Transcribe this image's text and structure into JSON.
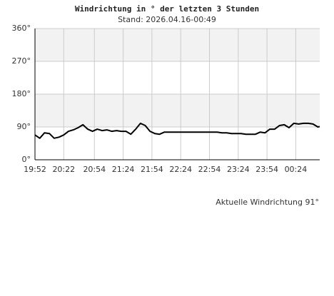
{
  "chart_data": {
    "type": "line",
    "title": "Windrichtung in ° der letzten 3 Stunden",
    "subtitle": "Stand: 2026.04.16-00:49",
    "annotation": "Aktuelle Windrichtung 91°",
    "x": [
      "19:52",
      "19:57",
      "20:02",
      "20:07",
      "20:12",
      "20:17",
      "20:22",
      "20:27",
      "20:32",
      "20:37",
      "20:42",
      "20:47",
      "20:52",
      "20:57",
      "21:02",
      "21:07",
      "21:12",
      "21:17",
      "21:22",
      "21:27",
      "21:32",
      "21:37",
      "21:42",
      "21:47",
      "21:52",
      "21:57",
      "22:02",
      "22:07",
      "22:12",
      "22:17",
      "22:22",
      "22:27",
      "22:32",
      "22:37",
      "22:42",
      "22:47",
      "22:52",
      "22:57",
      "23:02",
      "23:07",
      "23:12",
      "23:17",
      "23:22",
      "23:27",
      "23:32",
      "23:37",
      "23:42",
      "23:47",
      "23:52",
      "23:57",
      "00:02",
      "00:07",
      "00:12",
      "00:17",
      "00:22",
      "00:27",
      "00:32",
      "00:37",
      "00:42",
      "00:47",
      "00:49"
    ],
    "series": [
      {
        "name": "Windrichtung",
        "color": "#000000",
        "values": [
          68,
          59,
          74,
          72,
          59,
          62,
          68,
          78,
          82,
          88,
          96,
          84,
          78,
          84,
          80,
          82,
          78,
          80,
          78,
          78,
          70,
          84,
          100,
          94,
          78,
          72,
          70,
          76,
          76,
          76,
          76,
          76,
          76,
          76,
          76,
          76,
          76,
          76,
          76,
          74,
          74,
          72,
          72,
          72,
          70,
          70,
          70,
          76,
          74,
          84,
          84,
          94,
          96,
          88,
          100,
          98,
          100,
          100,
          98,
          90,
          91
        ]
      }
    ],
    "xlim": [
      "19:52",
      "00:49"
    ],
    "xticks": [
      "19:52",
      "20:22",
      "20:54",
      "21:24",
      "21:54",
      "22:24",
      "22:54",
      "23:24",
      "23:54",
      "00:24"
    ],
    "ylim": [
      0,
      360
    ],
    "yticks": [
      {
        "value": 0,
        "label": "0°"
      },
      {
        "value": 90,
        "label": "90°"
      },
      {
        "value": 180,
        "label": "180°"
      },
      {
        "value": 270,
        "label": "270°"
      },
      {
        "value": 360,
        "label": "360°"
      }
    ],
    "grid": true,
    "grid_color": "#cccccc",
    "band_color": "#f2f2f2"
  }
}
